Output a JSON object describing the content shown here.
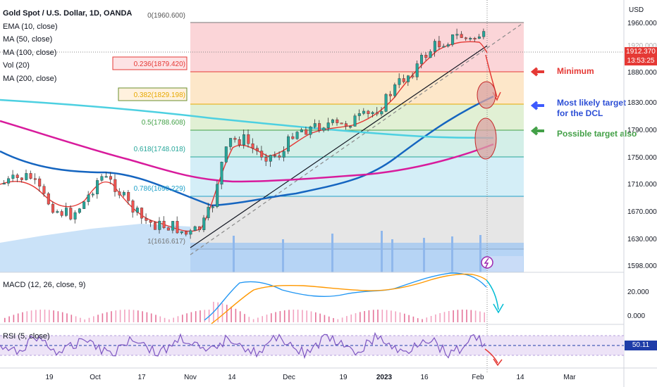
{
  "header": {
    "symbol_title": "Gold Spot / U.S. Dollar, 1D, OANDA",
    "indicators": [
      "EMA (10, close)",
      "MA (50, close)",
      "MA (100, close)",
      "Vol (20)",
      "MA (200, close)"
    ],
    "currency": "USD"
  },
  "price_axis": {
    "ticks": [
      "1960.000",
      "1920.000",
      "1880.000",
      "1830.000",
      "1790.000",
      "1750.000",
      "1710.000",
      "1670.000",
      "1630.000",
      "1598.000"
    ],
    "current_price": "1912.370",
    "countdown": "13:53:25"
  },
  "time_axis": {
    "ticks": [
      "19",
      "Oct",
      "17",
      "Nov",
      "14",
      "Dec",
      "19",
      "2023",
      "16",
      "Feb",
      "14",
      "Mar"
    ]
  },
  "fib_levels": [
    {
      "label": "0(1960.600)",
      "color": "#555555"
    },
    {
      "label": "0.236(1879.420)",
      "color": "#e53935"
    },
    {
      "label": "0.382(1829.198)",
      "color": "#e6a800"
    },
    {
      "label": "0.5(1788.608)",
      "color": "#43a047"
    },
    {
      "label": "0.618(1748.018)",
      "color": "#26a69a"
    },
    {
      "label": "0.786(1690.229)",
      "color": "#1ea0c8"
    },
    {
      "label": "1(1616.617)",
      "color": "#757575"
    }
  ],
  "annotations": {
    "minimum": "Minimum",
    "likely_line1": "Most likely target",
    "likely_line2": "for the DCL",
    "possible": "Possible target also"
  },
  "macd": {
    "label": "MACD (12, 26, close, 9)",
    "ticks": [
      "20.000",
      "0.000"
    ]
  },
  "rsi": {
    "label": "RSI (5, close)",
    "value": "50.11"
  },
  "colors": {
    "up_candle": "#26a69a",
    "down_candle": "#ef5350",
    "ema10": "#e53935",
    "ma50": "#2962ff",
    "ma100": "#1565c0",
    "ma200": "#d81b9c",
    "ma_cyan": "#4dd0e1"
  }
}
